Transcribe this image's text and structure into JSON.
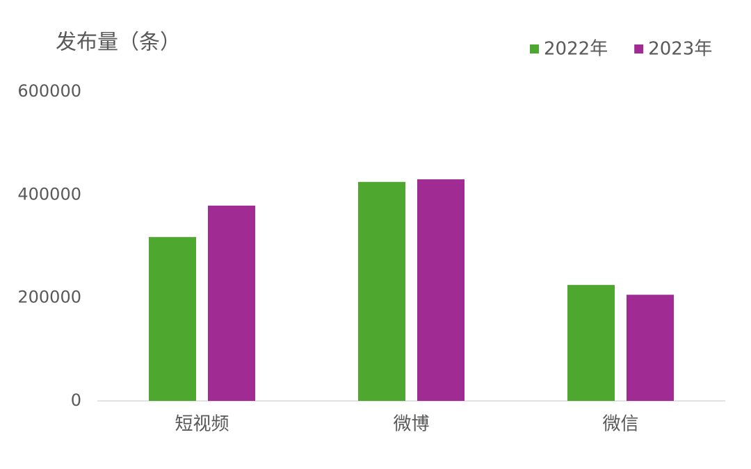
{
  "chart_data": {
    "type": "bar",
    "title": "发布量（条）",
    "categories": [
      "短视频",
      "微博",
      "微信"
    ],
    "series": [
      {
        "name": "2022年",
        "color": "#4ea72e",
        "values": [
          318000,
          425000,
          225000
        ]
      },
      {
        "name": "2023年",
        "color": "#a02b93",
        "values": [
          379000,
          430000,
          206000
        ]
      }
    ],
    "ylim": [
      0,
      600000
    ],
    "yticks": [
      0,
      200000,
      400000,
      600000
    ],
    "grid": false,
    "legend": "top-right"
  }
}
